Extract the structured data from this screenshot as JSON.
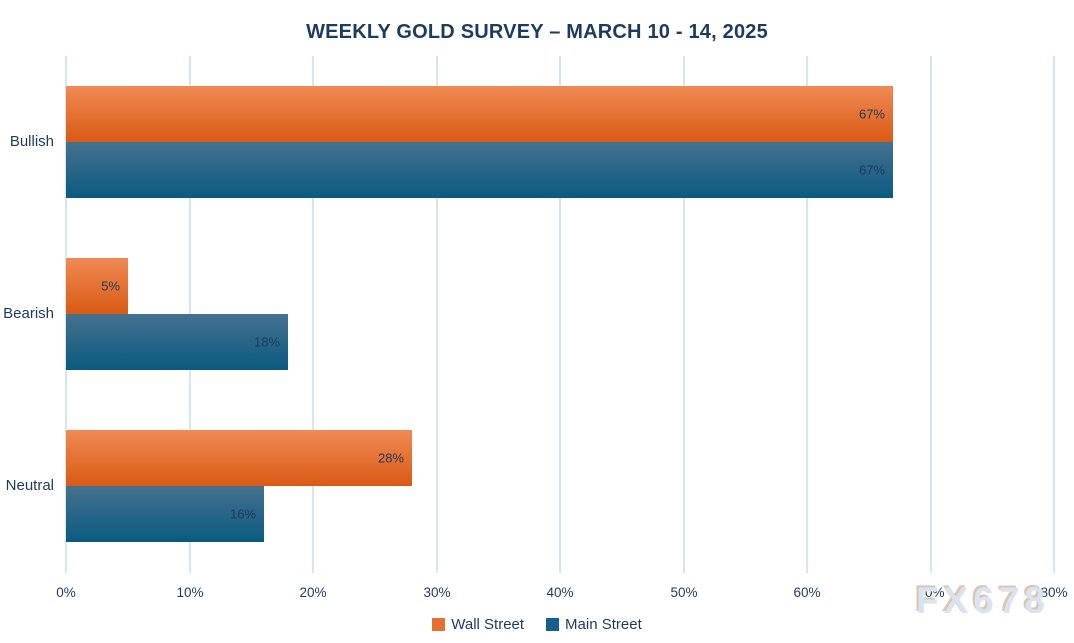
{
  "watermark": "FX678",
  "chart_data": {
    "type": "bar",
    "orientation": "horizontal",
    "title": "WEEKLY GOLD SURVEY – MARCH 10 - 14, 2025",
    "categories": [
      "Bullish",
      "Bearish",
      "Neutral"
    ],
    "series": [
      {
        "name": "Wall Street",
        "values": [
          67,
          5,
          28
        ],
        "gradient_top": "#f08a54",
        "gradient_bottom": "#d95a14",
        "legend_color": "#e8702e"
      },
      {
        "name": "Main Street",
        "values": [
          67,
          18,
          16
        ],
        "gradient_top": "#45718e",
        "gradient_bottom": "#0b5a81",
        "legend_color": "#155f8d"
      }
    ],
    "value_suffix": "%",
    "xlim": [
      0,
      80
    ],
    "x_ticks": [
      "0%",
      "10%",
      "20%",
      "30%",
      "40%",
      "50%",
      "60%",
      "70%",
      "80%"
    ],
    "grid": true,
    "legend_position": "bottom",
    "data_labels": "inside-end",
    "text_color": "#1d3a5f",
    "gridline_color": "#d7e4f5"
  }
}
